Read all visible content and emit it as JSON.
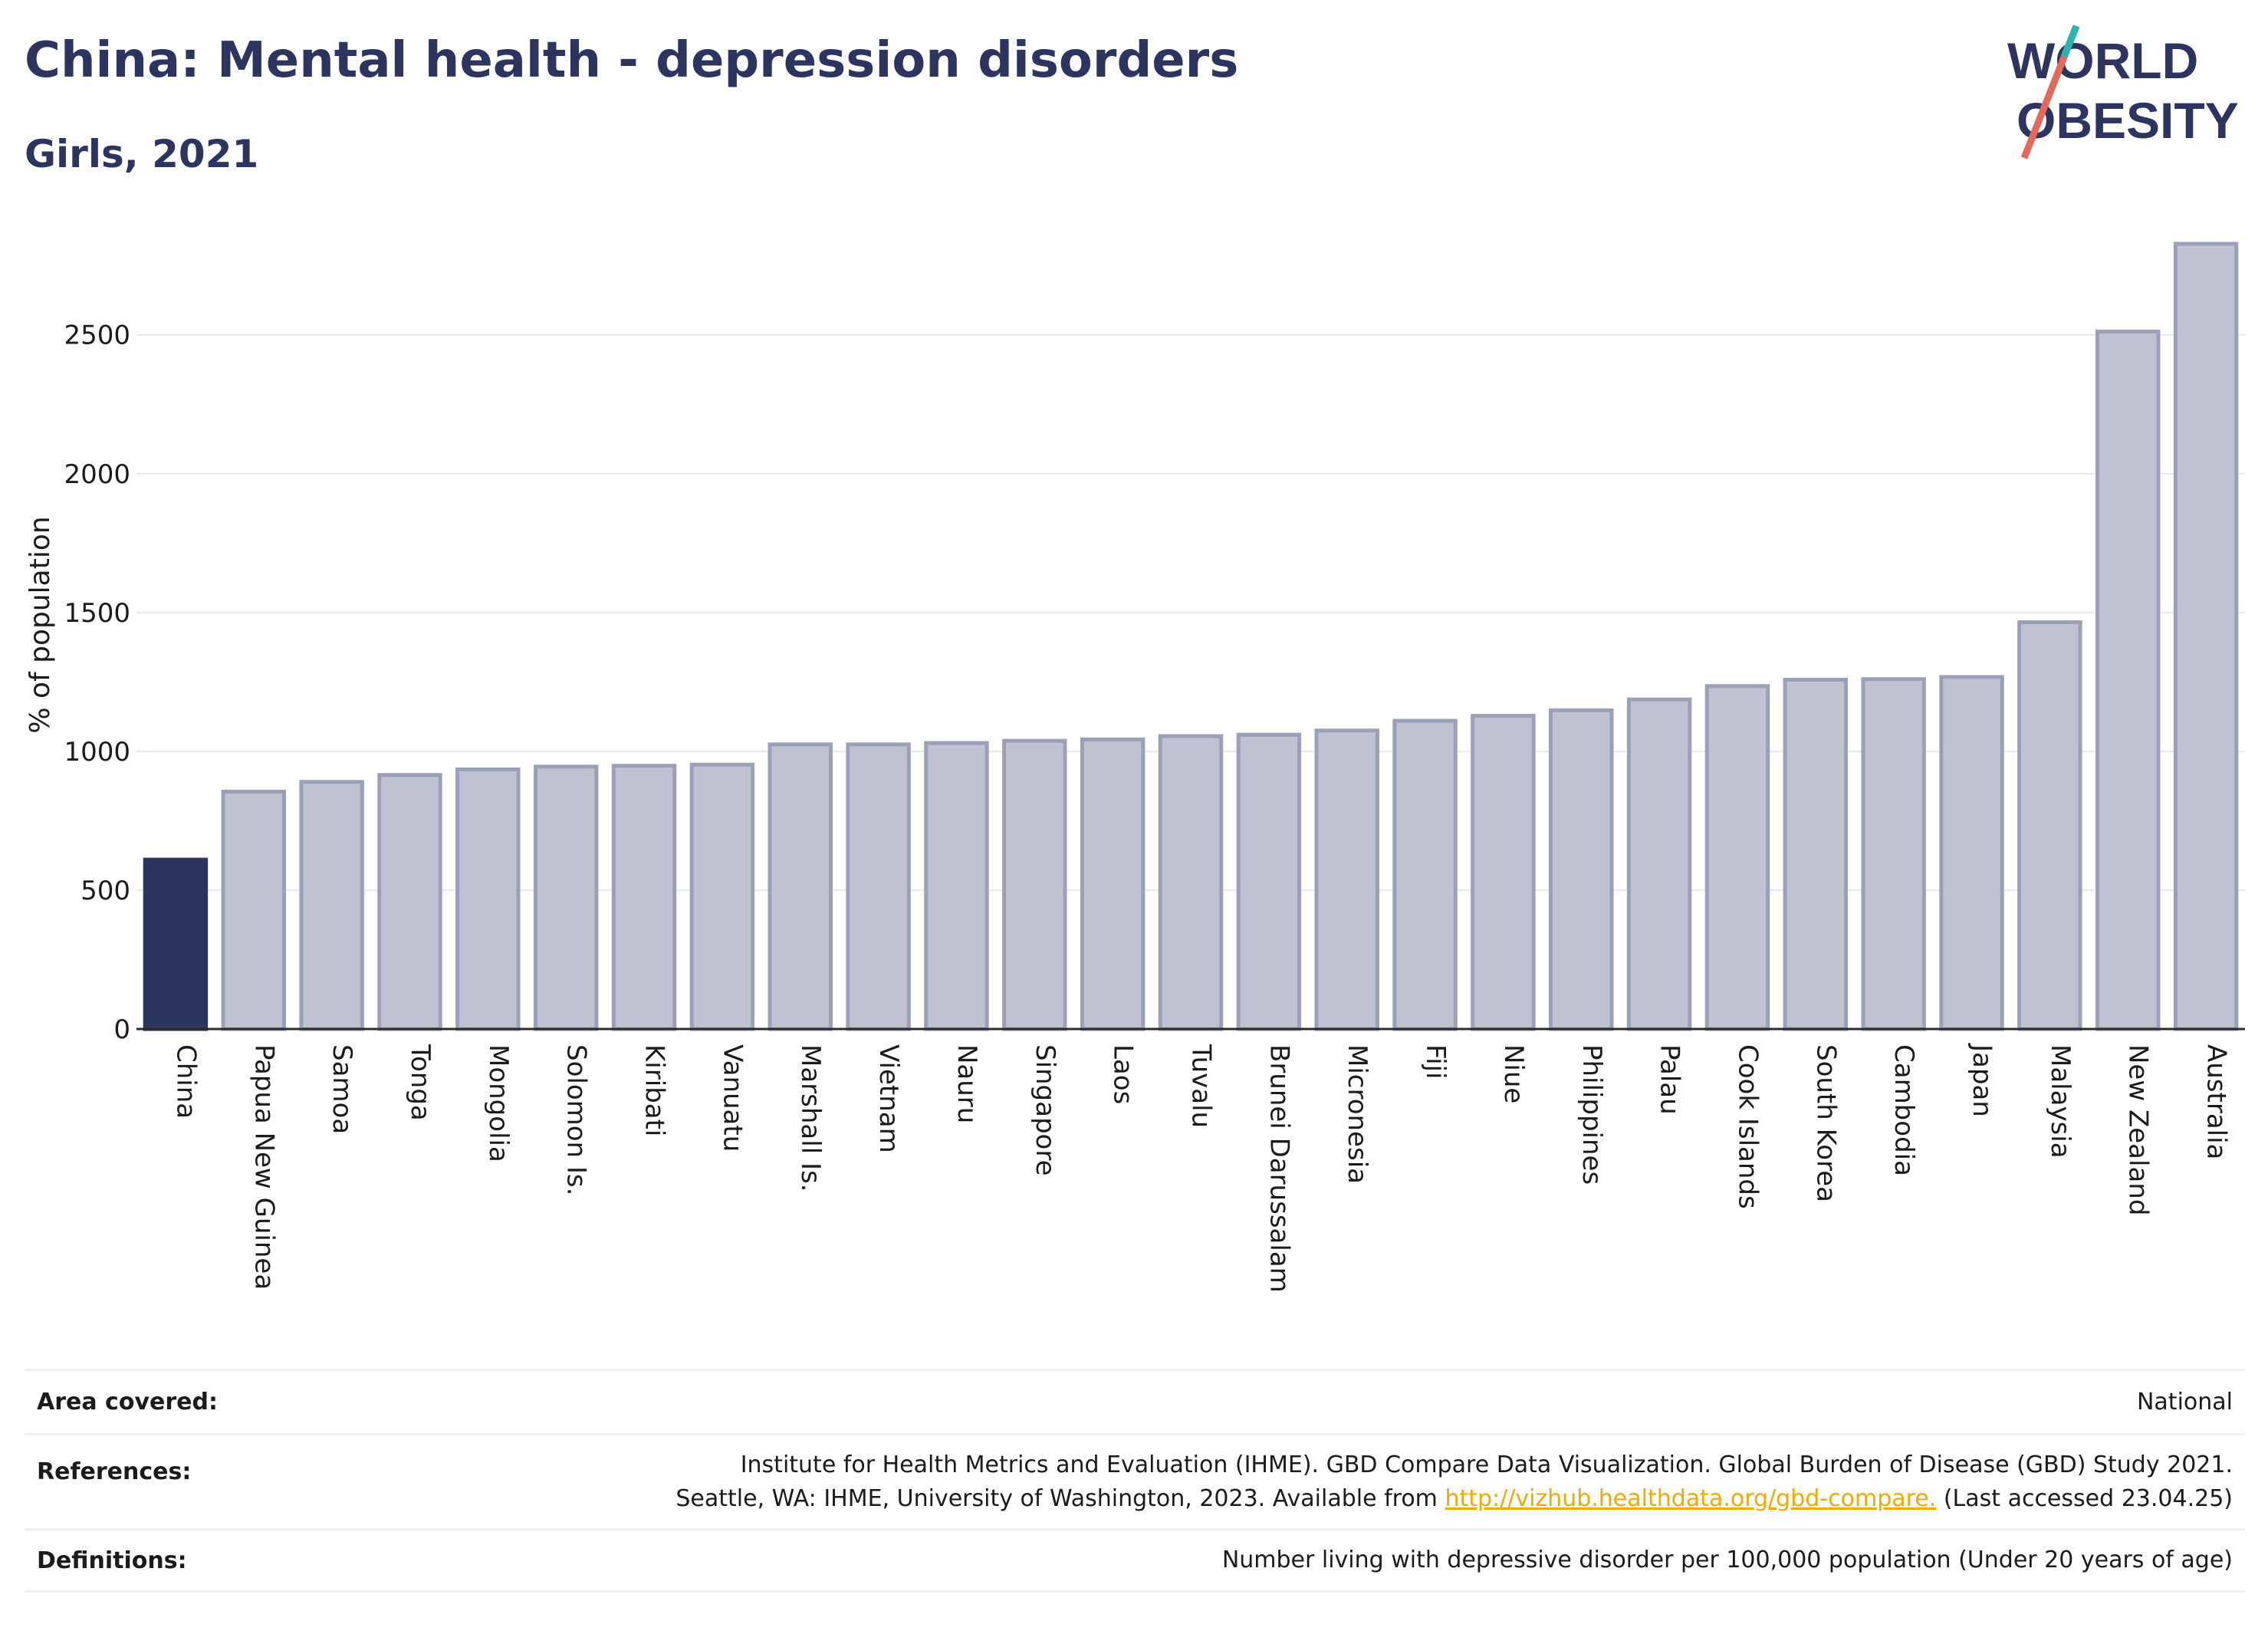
{
  "header": {
    "title": "China: Mental health - depression disorders",
    "subtitle": "Girls, 2021"
  },
  "logo": {
    "line1": "WORLD",
    "line2": "OBESITY"
  },
  "colors": {
    "highlight": "#2b3560",
    "bar": "#bfc3d1",
    "bar_stroke": "#9aa0b8",
    "title": "#2b3560",
    "link": "#f2a900"
  },
  "chart_data": {
    "type": "bar",
    "ylabel": "% of population",
    "xlabel": "",
    "ylim": [
      0,
      2850
    ],
    "yticks": [
      0,
      500,
      1000,
      1500,
      2000,
      2500
    ],
    "grid": true,
    "highlight": "China",
    "categories": [
      "China",
      "Papua New Guinea",
      "Samoa",
      "Tonga",
      "Mongolia",
      "Solomon Is.",
      "Kiribati",
      "Vanuatu",
      "Marshall Is.",
      "Vietnam",
      "Nauru",
      "Singapore",
      "Laos",
      "Tuvalu",
      "Brunei Darussalam",
      "Micronesia",
      "Fiji",
      "Niue",
      "Philippines",
      "Palau",
      "Cook Islands",
      "South Korea",
      "Cambodia",
      "Japan",
      "Malaysia",
      "New Zealand",
      "Australia"
    ],
    "values": [
      610,
      855,
      890,
      915,
      935,
      945,
      948,
      952,
      1025,
      1025,
      1030,
      1038,
      1043,
      1055,
      1060,
      1075,
      1110,
      1128,
      1148,
      1187,
      1235,
      1258,
      1260,
      1268,
      1465,
      2512,
      2828
    ]
  },
  "footer": {
    "area_label": "Area covered:",
    "area_value": "National",
    "references_label": "References:",
    "references_line1": "Institute for Health Metrics and Evaluation (IHME). GBD Compare Data Visualization. Global Burden of Disease (GBD) Study 2021.",
    "references_line2_pre": "Seattle, WA: IHME, University of Washington, 2023. Available from ",
    "references_link": "http://vizhub.healthdata.org/gbd-compare.",
    "references_line2_post": " (Last accessed 23.04.25)",
    "definitions_label": "Definitions:",
    "definitions_value": "Number living with depressive disorder per 100,000 population (Under 20 years of age)"
  }
}
